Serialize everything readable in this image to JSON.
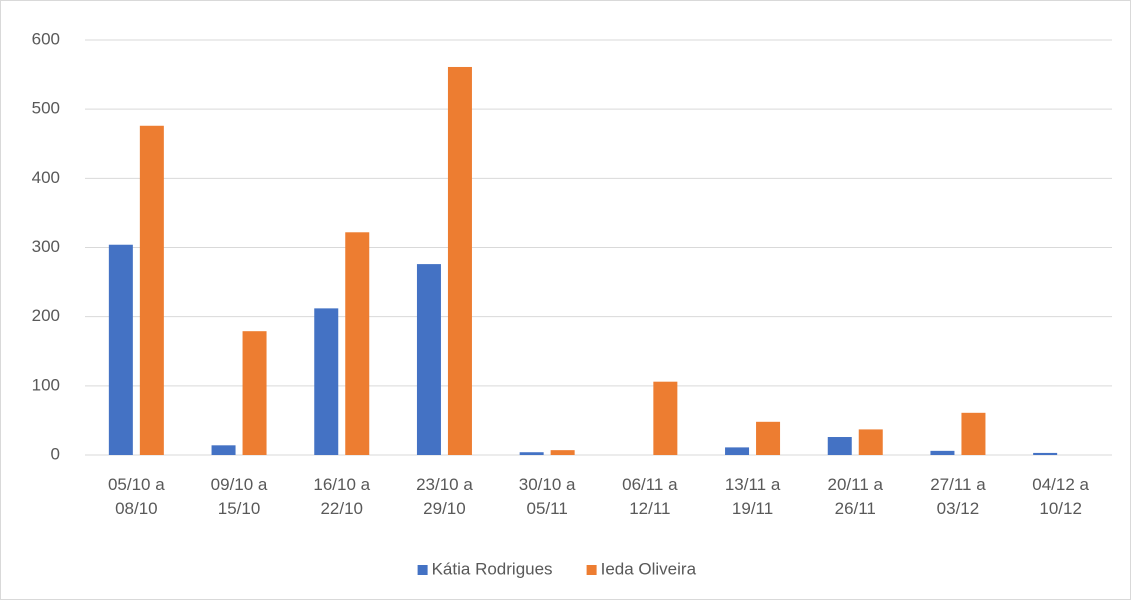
{
  "chart_data": {
    "type": "bar",
    "categories": [
      "05/10 a 08/10",
      "09/10 a 15/10",
      "16/10 a 22/10",
      "23/10 a 29/10",
      "30/10 a 05/11",
      "06/11 a 12/11",
      "13/11 a 19/11",
      "20/11 a 26/11",
      "27/11 a 03/12",
      "04/12 a 10/12"
    ],
    "series": [
      {
        "name": "Kátia Rodrigues",
        "color": "#4472c4",
        "values": [
          304,
          14,
          212,
          276,
          4,
          0,
          11,
          26,
          6,
          3
        ]
      },
      {
        "name": "Ieda Oliveira",
        "color": "#ed7d31",
        "values": [
          476,
          179,
          322,
          561,
          7,
          106,
          48,
          37,
          61,
          0
        ]
      }
    ],
    "ylim": [
      0,
      600
    ],
    "yticks": [
      0,
      100,
      200,
      300,
      400,
      500,
      600
    ],
    "grid": true,
    "legend": "bottom"
  }
}
